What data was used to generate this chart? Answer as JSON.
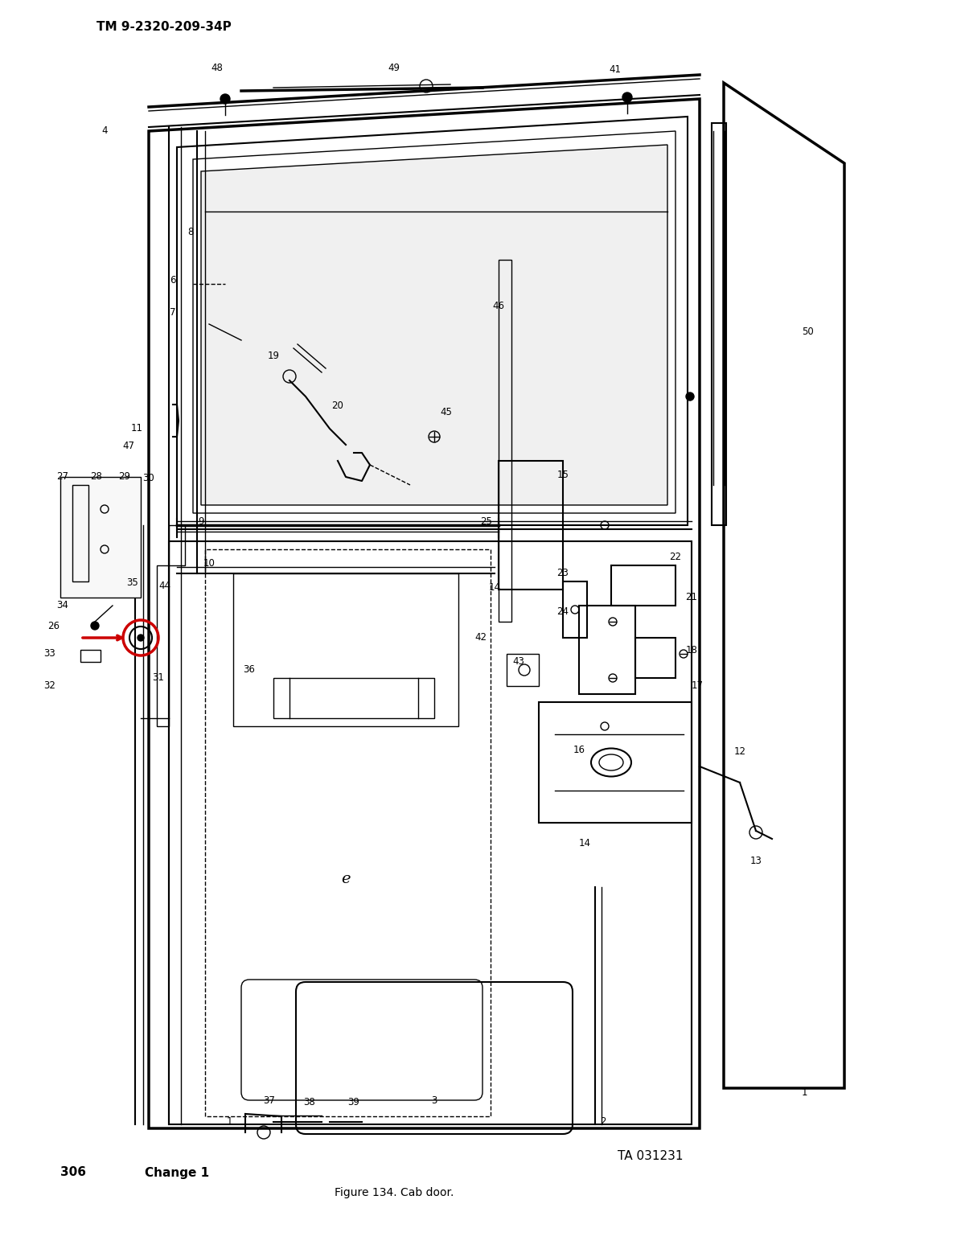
{
  "title_top": "TM 9-2320-209-34P",
  "figure_caption": "Figure 134. Cab door.",
  "page_number": "306",
  "change_text": "Change 1",
  "ta_number": "TA 031231",
  "bg_color": "#ffffff",
  "line_color": "#000000",
  "highlight_color": "#cc0000",
  "fig_width": 12.0,
  "fig_height": 15.53
}
